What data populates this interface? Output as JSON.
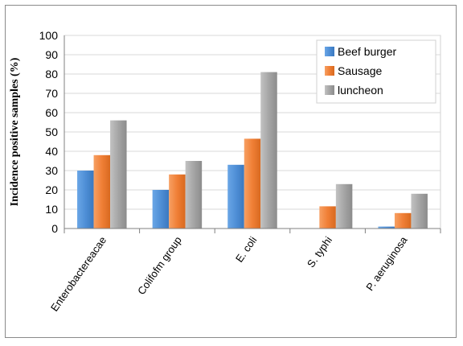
{
  "chart_data": {
    "type": "bar",
    "title": "",
    "xlabel": "",
    "ylabel": "Incidence positive samples (%)",
    "ylim": [
      0,
      100
    ],
    "yticks": [
      0,
      10,
      20,
      30,
      40,
      50,
      60,
      70,
      80,
      90,
      100
    ],
    "grid": true,
    "legend_position": "top-right",
    "categories": [
      "Enterobactereacae",
      "Colifofm group",
      "E. coli",
      "S. typhi",
      "P. aeruginosa"
    ],
    "series": [
      {
        "name": "Beef burger",
        "color": "#4f8fd6",
        "values": [
          30,
          20,
          33,
          0,
          1
        ]
      },
      {
        "name": "Sausage",
        "color": "#f07f36",
        "values": [
          38,
          28,
          46.5,
          11.5,
          8
        ]
      },
      {
        "name": "luncheon",
        "color": "#a5a5a5",
        "values": [
          56,
          35,
          81,
          23,
          18
        ]
      }
    ]
  }
}
